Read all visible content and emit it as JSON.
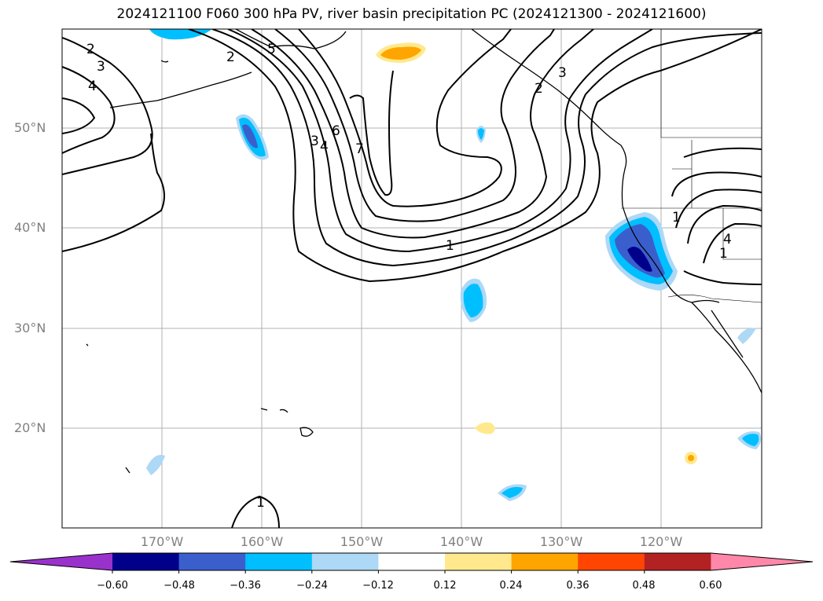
{
  "title": "2024121100 F060 300 hPa PV, river basin precipitation PC (2024121300 - 2024121600)",
  "lat_labels": [
    "50°N",
    "40°N",
    "30°N",
    "20°N"
  ],
  "lon_labels": [
    "170°W",
    "160°W",
    "150°W",
    "140°W",
    "130°W",
    "120°W"
  ],
  "contour_labels": [
    "2",
    "3",
    "4",
    "2",
    "3",
    "4",
    "5",
    "6",
    "7",
    "1",
    "1",
    "1",
    "2",
    "3",
    "4",
    "1"
  ],
  "colorbar": {
    "ticks": [
      "−0.60",
      "−0.48",
      "−0.36",
      "−0.24",
      "−0.12",
      "0.12",
      "0.24",
      "0.36",
      "0.48",
      "0.60"
    ],
    "colors": [
      "#9932cc",
      "#00008b",
      "#3a5fcd",
      "#00bfff",
      "#add8f6",
      "#ffffff",
      "#ffe98c",
      "#ffa500",
      "#ff4500",
      "#b22222",
      "#ff88aa"
    ]
  }
}
